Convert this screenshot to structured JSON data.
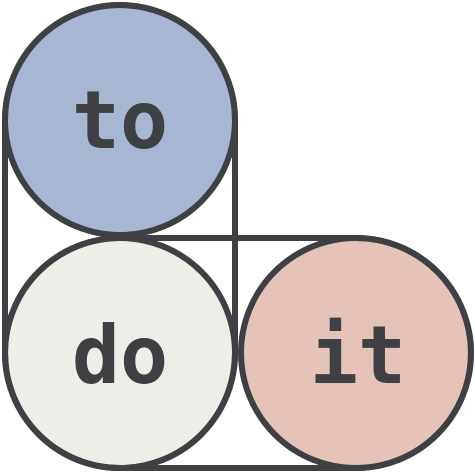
{
  "logo": {
    "words": {
      "top": "to",
      "bottom_left": "do",
      "bottom_right": "it"
    },
    "colors": {
      "top_circle": "#a7b7d1",
      "bottom_left_circle": "#efede8",
      "bottom_right_circle": "#e6c3b9",
      "stroke": "#3f4043",
      "text": "#3f4043",
      "background": "#ffffff"
    }
  }
}
